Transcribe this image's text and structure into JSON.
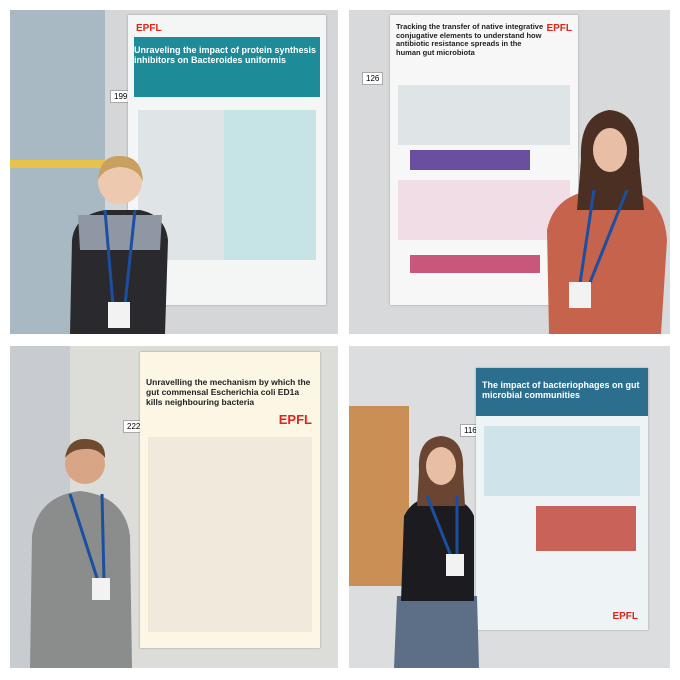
{
  "photos": [
    {
      "board_number": "199",
      "poster": {
        "title": "Unraveling the impact of protein synthesis inhibitors on Bacteroides uniformis",
        "logo": "EPFL"
      }
    },
    {
      "board_number": "126",
      "poster": {
        "title": "Tracking the transfer of native integrative conjugative elements to understand how antibiotic resistance spreads in the human gut microbiota",
        "logo": "EPFL"
      }
    },
    {
      "board_number": "222",
      "poster": {
        "title": "Unravelling the mechanism by which the gut commensal Escherichia coli ED1a kills neighbouring bacteria",
        "logo": "EPFL"
      }
    },
    {
      "board_number": "116",
      "poster": {
        "title": "The impact of bacteriophages on gut microbial communities",
        "logo": "EPFL"
      }
    }
  ]
}
